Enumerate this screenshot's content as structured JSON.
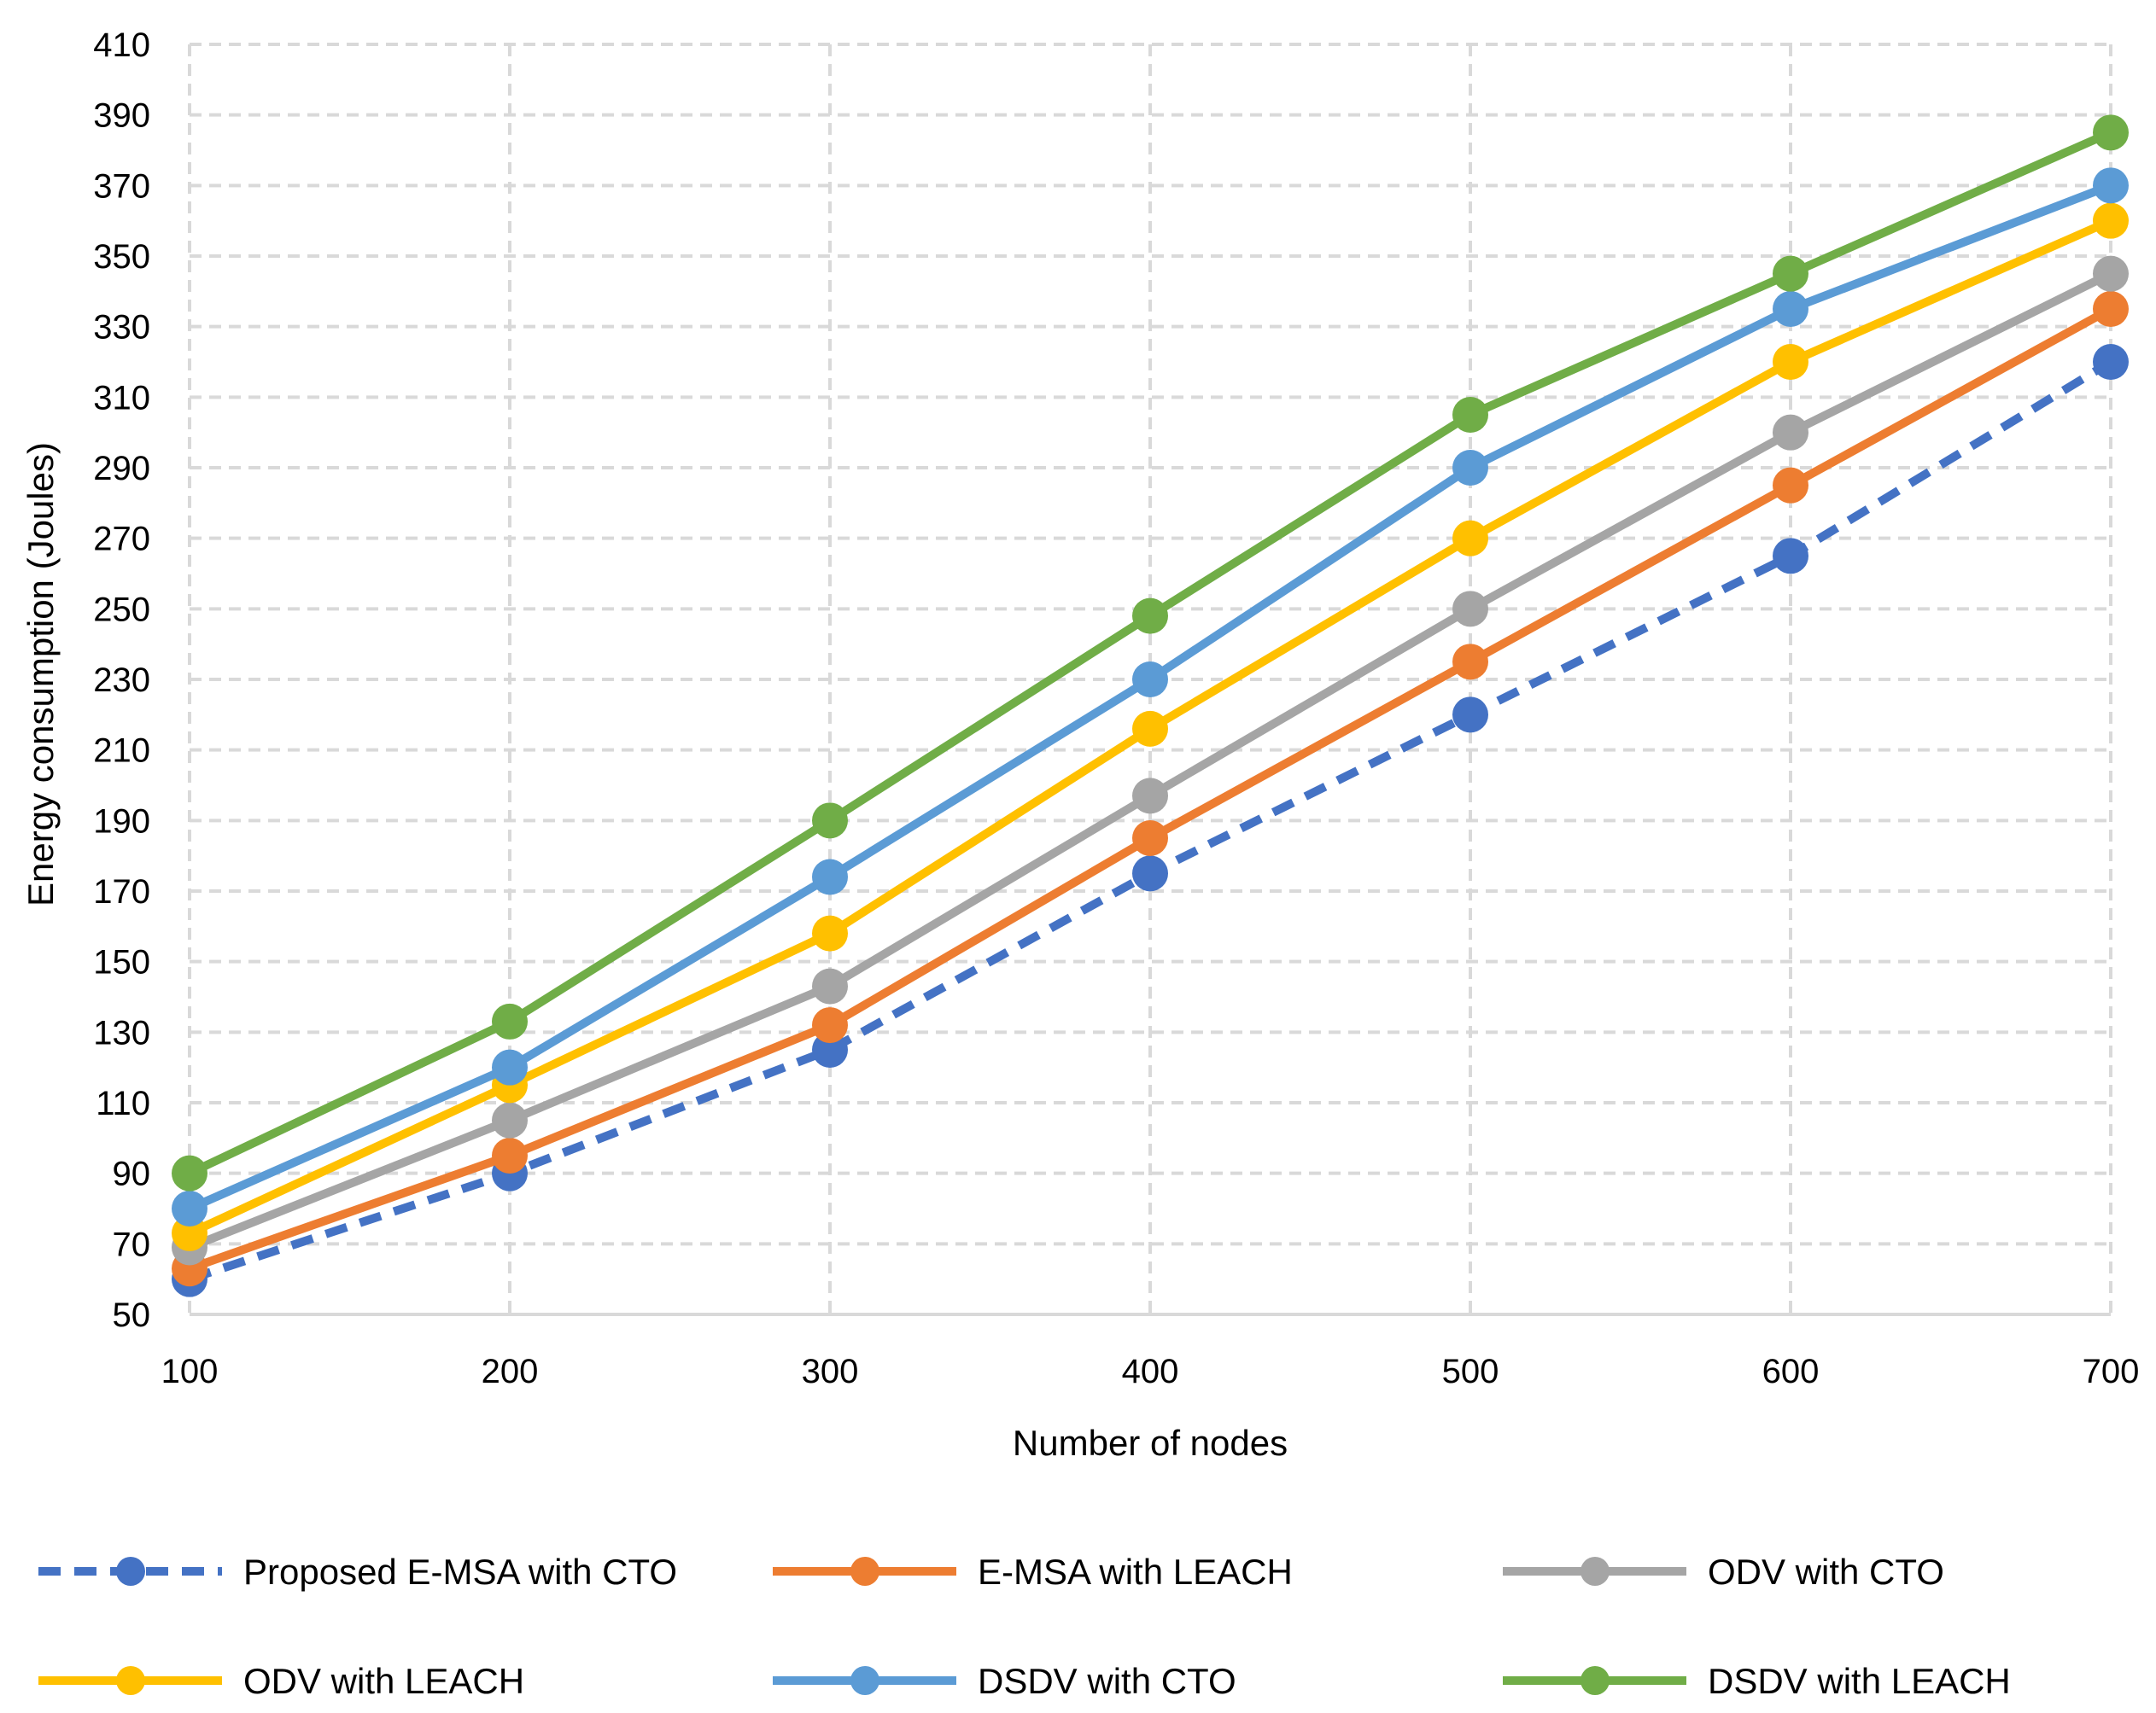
{
  "chart_data": {
    "type": "line",
    "title": "",
    "xlabel": "Number of nodes",
    "ylabel": "Energy consumption (Joules)",
    "x": [
      100,
      200,
      300,
      400,
      500,
      600,
      700
    ],
    "x_tick_labels": [
      "100",
      "200",
      "300",
      "400",
      "500",
      "600",
      "700"
    ],
    "ylim": [
      50,
      410
    ],
    "y_ticks": [
      50,
      70,
      90,
      110,
      130,
      150,
      170,
      190,
      210,
      230,
      250,
      270,
      290,
      310,
      330,
      350,
      370,
      390,
      410
    ],
    "y_tick_labels": [
      "50",
      "70",
      "90",
      "110",
      "130",
      "150",
      "170",
      "190",
      "210",
      "230",
      "250",
      "270",
      "290",
      "310",
      "330",
      "350",
      "370",
      "390",
      "410"
    ],
    "grid": true,
    "legend_position": "bottom",
    "series": [
      {
        "name": "Proposed E-MSA with CTO",
        "values": [
          60,
          90,
          125,
          175,
          220,
          265,
          320
        ],
        "color": "#4472C4",
        "dashed": true
      },
      {
        "name": "E-MSA with LEACH",
        "values": [
          63,
          95,
          132,
          185,
          235,
          285,
          335
        ],
        "color": "#ED7D31",
        "dashed": false
      },
      {
        "name": "ODV with CTO",
        "values": [
          69,
          105,
          143,
          197,
          250,
          300,
          345
        ],
        "color": "#A5A5A5",
        "dashed": false
      },
      {
        "name": "ODV with LEACH",
        "values": [
          73,
          115,
          158,
          216,
          270,
          320,
          360
        ],
        "color": "#FFC000",
        "dashed": false
      },
      {
        "name": "DSDV with CTO",
        "values": [
          80,
          120,
          174,
          230,
          290,
          335,
          370
        ],
        "color": "#5B9BD5",
        "dashed": false
      },
      {
        "name": "DSDV with LEACH",
        "values": [
          90,
          133,
          190,
          248,
          305,
          345,
          385
        ],
        "color": "#70AD47",
        "dashed": false
      }
    ]
  }
}
